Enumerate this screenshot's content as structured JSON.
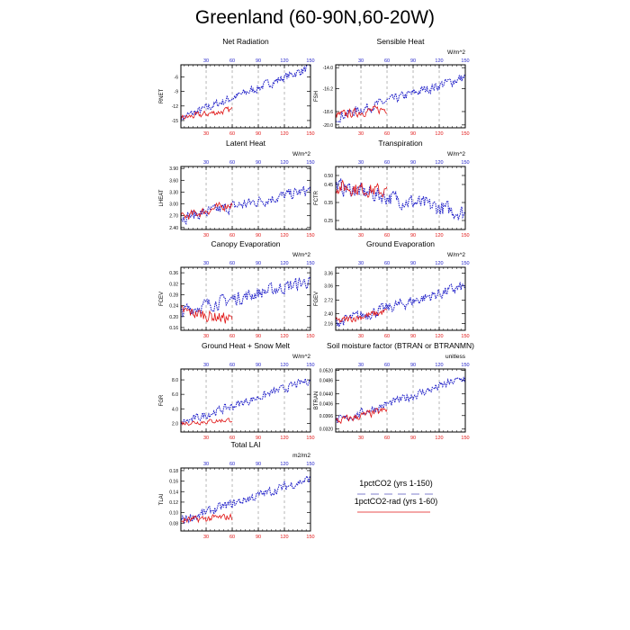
{
  "title": "Greenland (60-90N,60-20W)",
  "legend": {
    "placement": "bottom-right",
    "entries": [
      {
        "label": "1pctCO2 (yrs 1-150)",
        "color": "#1e1ec8",
        "style": "dashed"
      },
      {
        "label": "1pctCO2-rad (yrs 1-60)",
        "color": "#e01414",
        "style": "solid"
      }
    ]
  },
  "chart_data": [
    {
      "type": "line",
      "title": "Net Radiation",
      "ylabel": "RNET",
      "units": "",
      "xlim": [
        1,
        150
      ],
      "ylim": [
        -16.5,
        -3.5
      ],
      "x_ticks": [
        30,
        60,
        90,
        120,
        150
      ],
      "y_ticks": [
        -15,
        -12,
        -9,
        -6
      ],
      "y_tick_labels": [
        "-15",
        "-12",
        "-9",
        "-6"
      ],
      "grid_x": true,
      "series": [
        {
          "name": "1pctCO2 (yrs 1-150)",
          "color": "#1e1ec8",
          "start": -14.5,
          "end": -4.0,
          "noise": 0.8
        },
        {
          "name": "1pctCO2-rad (yrs 1-60)",
          "color": "#e01414",
          "start": -14.5,
          "end": -12.8,
          "noise": 0.6
        }
      ]
    },
    {
      "type": "line",
      "title": "Sensible Heat",
      "ylabel": "FSH",
      "units": "W/m^2",
      "xlim": [
        1,
        150
      ],
      "ylim": [
        -20.3,
        -13.7
      ],
      "x_ticks": [
        30,
        60,
        90,
        120,
        150
      ],
      "y_ticks": [
        -20,
        -18.6,
        -16.2,
        -14
      ],
      "y_tick_labels": [
        "-20.0",
        "-18.6",
        "-16.2",
        "-14.0"
      ],
      "grid_x": true,
      "series": [
        {
          "name": "1pctCO2 (yrs 1-150)",
          "color": "#1e1ec8",
          "start": -19.2,
          "end": -15.0,
          "noise": 0.45
        },
        {
          "name": "1pctCO2-rad (yrs 1-60)",
          "color": "#e01414",
          "start": -19.0,
          "end": -18.3,
          "noise": 0.4
        }
      ]
    },
    {
      "type": "line",
      "title": "Latent Heat",
      "ylabel": "LHEAT",
      "units": "W/m^2",
      "xlim": [
        1,
        150
      ],
      "ylim": [
        2.35,
        3.95
      ],
      "x_ticks": [
        30,
        60,
        90,
        120,
        150
      ],
      "y_ticks": [
        2.4,
        2.7,
        3.0,
        3.3,
        3.6,
        3.9
      ],
      "y_tick_labels": [
        "2.40",
        "2.70",
        "3.00",
        "3.30",
        "3.60",
        "3.90"
      ],
      "grid_x": true,
      "series": [
        {
          "name": "1pctCO2 (yrs 1-150)",
          "color": "#1e1ec8",
          "start": 2.65,
          "end": 3.35,
          "noise": 0.13
        },
        {
          "name": "1pctCO2-rad (yrs 1-60)",
          "color": "#e01414",
          "start": 2.65,
          "end": 3.0,
          "noise": 0.1
        }
      ]
    },
    {
      "type": "line",
      "title": "Transpiration",
      "ylabel": "FCTR",
      "units": "W/m^2",
      "xlim": [
        1,
        150
      ],
      "ylim": [
        0.2,
        0.55
      ],
      "x_ticks": [
        30,
        60,
        90,
        120,
        150
      ],
      "y_ticks": [
        0.25,
        0.35,
        0.45,
        0.5
      ],
      "y_tick_labels": [
        "0.25",
        "0.35",
        "0.45",
        "0.50"
      ],
      "grid_x": true,
      "series": [
        {
          "name": "1pctCO2 (yrs 1-150)",
          "color": "#1e1ec8",
          "start": 0.44,
          "end": 0.29,
          "noise": 0.04
        },
        {
          "name": "1pctCO2-rad (yrs 1-60)",
          "color": "#e01414",
          "start": 0.44,
          "end": 0.41,
          "noise": 0.035
        }
      ]
    },
    {
      "type": "line",
      "title": "Canopy Evaporation",
      "ylabel": "FCEV",
      "units": "W/m^2",
      "xlim": [
        1,
        150
      ],
      "ylim": [
        0.15,
        0.38
      ],
      "x_ticks": [
        30,
        60,
        90,
        120,
        150
      ],
      "y_ticks": [
        0.16,
        0.2,
        0.24,
        0.28,
        0.32,
        0.36
      ],
      "y_tick_labels": [
        "0.16",
        "0.20",
        "0.24",
        "0.28",
        "0.32",
        "0.36"
      ],
      "grid_x": true,
      "series": [
        {
          "name": "1pctCO2 (yrs 1-150)",
          "color": "#1e1ec8",
          "start": 0.22,
          "end": 0.33,
          "noise": 0.022
        },
        {
          "name": "1pctCO2-rad (yrs 1-60)",
          "color": "#e01414",
          "start": 0.22,
          "end": 0.19,
          "noise": 0.02
        }
      ]
    },
    {
      "type": "line",
      "title": "Ground Evaporation",
      "ylabel": "FGEV",
      "units": "W/m^2",
      "xlim": [
        1,
        150
      ],
      "ylim": [
        2.0,
        3.5
      ],
      "x_ticks": [
        30,
        60,
        90,
        120,
        150
      ],
      "y_ticks": [
        2.16,
        2.4,
        2.72,
        3.06,
        3.36
      ],
      "y_tick_labels": [
        "2.16",
        "2.40",
        "2.72",
        "3.06",
        "3.36"
      ],
      "grid_x": true,
      "series": [
        {
          "name": "1pctCO2 (yrs 1-150)",
          "color": "#1e1ec8",
          "start": 2.18,
          "end": 3.05,
          "noise": 0.12
        },
        {
          "name": "1pctCO2-rad (yrs 1-60)",
          "color": "#e01414",
          "start": 2.2,
          "end": 2.45,
          "noise": 0.08
        }
      ]
    },
    {
      "type": "line",
      "title": "Ground Heat + Snow Melt",
      "ylabel": "FGR",
      "units": "W/m^2",
      "xlim": [
        1,
        150
      ],
      "ylim": [
        0.8,
        9.5
      ],
      "x_ticks": [
        30,
        60,
        90,
        120,
        150
      ],
      "y_ticks": [
        2.0,
        4.0,
        6.0,
        8.0
      ],
      "y_tick_labels": [
        "2.0",
        "4.0",
        "6.0",
        "8.0"
      ],
      "grid_x": true,
      "series": [
        {
          "name": "1pctCO2 (yrs 1-150)",
          "color": "#1e1ec8",
          "start": 2.0,
          "end": 8.0,
          "noise": 0.5
        },
        {
          "name": "1pctCO2-rad (yrs 1-60)",
          "color": "#e01414",
          "start": 2.0,
          "end": 2.5,
          "noise": 0.3
        }
      ]
    },
    {
      "type": "line",
      "title": "Soil moisture factor (BTRAN or BTRANMN)",
      "ylabel": "BTRAN",
      "units": "unitless",
      "xlim": [
        1,
        150
      ],
      "ylim": [
        0.031,
        0.0525
      ],
      "x_ticks": [
        30,
        60,
        90,
        120,
        150
      ],
      "y_ticks": [
        0.032,
        0.0366,
        0.0406,
        0.044,
        0.0486,
        0.052
      ],
      "y_tick_labels": [
        "0.0320",
        "0.0366",
        "0.0406",
        "0.0440",
        "0.0486",
        "0.0520"
      ],
      "grid_x": true,
      "series": [
        {
          "name": "1pctCO2 (yrs 1-150)",
          "color": "#1e1ec8",
          "start": 0.0345,
          "end": 0.0495,
          "noise": 0.0013
        },
        {
          "name": "1pctCO2-rad (yrs 1-60)",
          "color": "#e01414",
          "start": 0.0345,
          "end": 0.0385,
          "noise": 0.0012
        }
      ]
    },
    {
      "type": "line",
      "title": "Total LAI",
      "ylabel": "TLAI",
      "units": "m2/m2",
      "xlim": [
        1,
        150
      ],
      "ylim": [
        0.065,
        0.185
      ],
      "x_ticks": [
        30,
        60,
        90,
        120,
        150
      ],
      "y_ticks": [
        0.08,
        0.1,
        0.12,
        0.14,
        0.16,
        0.18
      ],
      "y_tick_labels": [
        "0.08",
        "0.10",
        "0.12",
        "0.14",
        "0.16",
        "0.18"
      ],
      "grid_x": true,
      "series": [
        {
          "name": "1pctCO2 (yrs 1-150)",
          "color": "#1e1ec8",
          "start": 0.085,
          "end": 0.165,
          "noise": 0.008
        },
        {
          "name": "1pctCO2-rad (yrs 1-60)",
          "color": "#e01414",
          "start": 0.085,
          "end": 0.092,
          "noise": 0.006
        }
      ]
    }
  ]
}
